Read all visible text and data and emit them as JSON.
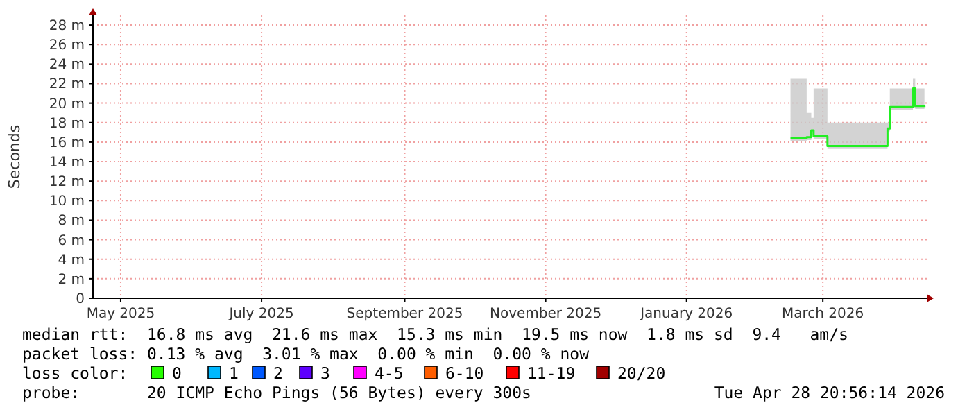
{
  "chart_data": {
    "type": "step",
    "ylabel": "Seconds",
    "xlim": [
      "2025-04-19",
      "2026-04-15"
    ],
    "xticks": [
      {
        "value": "2025-05-01",
        "label": "May 2025"
      },
      {
        "value": "2025-07-01",
        "label": "July 2025"
      },
      {
        "value": "2025-09-01",
        "label": "September 2025"
      },
      {
        "value": "2025-11-01",
        "label": "November 2025"
      },
      {
        "value": "2026-01-01",
        "label": "January 2026"
      },
      {
        "value": "2026-03-01",
        "label": "March 2026"
      }
    ],
    "ylim": [
      0,
      29
    ],
    "yticks": [
      0,
      {
        "value": 2,
        "label": "2 m"
      },
      {
        "value": 4,
        "label": "4 m"
      },
      {
        "value": 6,
        "label": "6 m"
      },
      {
        "value": 8,
        "label": "8 m"
      },
      {
        "value": 10,
        "label": "10 m"
      },
      {
        "value": 12,
        "label": "12 m"
      },
      {
        "value": 14,
        "label": "14 m"
      },
      {
        "value": 16,
        "label": "16 m"
      },
      {
        "value": 18,
        "label": "18 m"
      },
      {
        "value": 20,
        "label": "20 m"
      },
      {
        "value": 22,
        "label": "22 m"
      },
      {
        "value": 24,
        "label": "24 m"
      },
      {
        "value": 26,
        "label": "26 m"
      },
      {
        "value": 28,
        "label": "28 m"
      }
    ],
    "grid": true,
    "series": [
      {
        "color": "#22ee22",
        "x": [
          "2026-02-15",
          "2026-02-22",
          "2026-02-24",
          "2026-02-25",
          "2026-03-03",
          "2026-03-29",
          "2026-03-30",
          "2026-04-09",
          "2026-04-10",
          "2026-04-14"
        ],
        "values": [
          16.4,
          16.5,
          17.2,
          16.6,
          15.6,
          17.4,
          19.6,
          21.5,
          19.7,
          19.6
        ],
        "lower": [
          16.1,
          16.2,
          16.8,
          16.3,
          15.3,
          17.1,
          19.3,
          19.5,
          19.4,
          19.3
        ],
        "upper": [
          22.5,
          19,
          18.5,
          21.5,
          18,
          18,
          21.5,
          22.5,
          21.5,
          20.5
        ]
      }
    ],
    "annotations": [
      "median rtt:  16.8 ms avg  21.6 ms max  15.3 ms min  19.5 ms now  1.8 ms sd  9.4   am/s",
      "packet loss: 0.13 % avg  3.01 % max  0.00 % min  0.00 % now",
      "loss color:",
      "0",
      "1",
      "2",
      "3",
      "4-5",
      "6-10",
      "11-19",
      "20/20",
      "probe:       20 ICMP Echo Pings (56 Bytes) every 300s",
      "Tue Apr 28 20:56:14 2026"
    ]
  }
}
